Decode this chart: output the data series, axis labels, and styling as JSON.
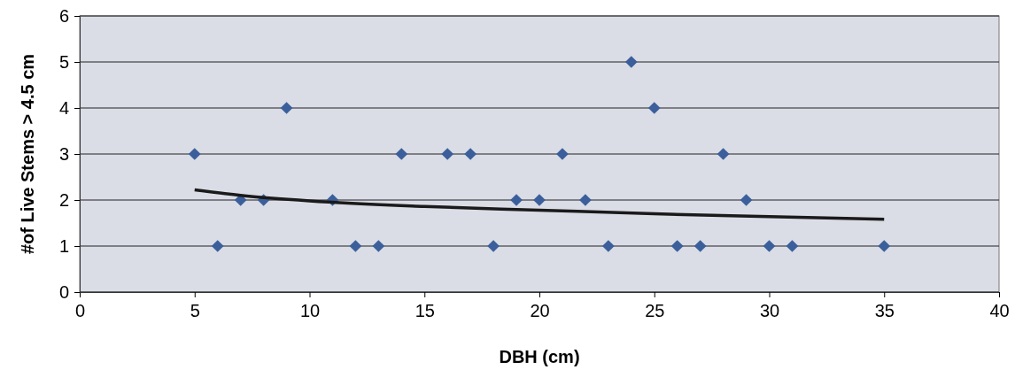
{
  "chart_data": {
    "type": "scatter",
    "xlabel": "DBH (cm)",
    "ylabel": "#of Live Stems > 4.5 cm",
    "xlim": [
      0,
      40
    ],
    "ylim": [
      0,
      6
    ],
    "xticks": [
      0,
      5,
      10,
      15,
      20,
      25,
      30,
      35,
      40
    ],
    "yticks": [
      0,
      1,
      2,
      3,
      4,
      5,
      6
    ],
    "grid": "y",
    "marker": "diamond",
    "series": [
      {
        "color": "#3b5f9b",
        "x": [
          5,
          6,
          7,
          8,
          9,
          11,
          12,
          13,
          14,
          16,
          17,
          18,
          19,
          20,
          21,
          22,
          23,
          24,
          25,
          26,
          27,
          28,
          29,
          30,
          31,
          35
        ],
        "values": [
          3,
          1,
          2,
          2,
          4,
          2,
          1,
          1,
          3,
          3,
          3,
          1,
          2,
          2,
          3,
          2,
          1,
          5,
          4,
          1,
          1,
          3,
          2,
          1,
          1,
          1
        ]
      },
      {
        "type": "line",
        "color": "#1a1a1a",
        "marker": "none",
        "x": [
          5,
          7,
          10,
          15,
          20,
          25,
          30,
          35
        ],
        "values": [
          2.22,
          2.1,
          1.98,
          1.86,
          1.78,
          1.7,
          1.64,
          1.58
        ]
      }
    ]
  }
}
